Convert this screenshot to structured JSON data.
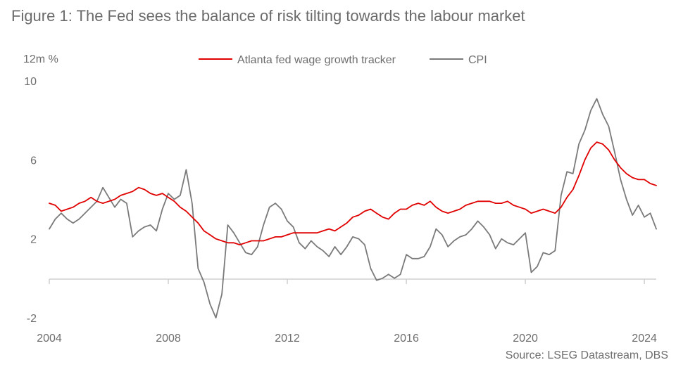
{
  "figure": {
    "title": "Figure 1: The Fed sees the balance of risk tilting towards the labour market",
    "source": "Source: LSEG Datastream, DBS"
  },
  "colors": {
    "wage": "#e00000",
    "cpi": "#7a7a7a",
    "axis": "#cfcfcf"
  },
  "chart_data": {
    "type": "line",
    "title": "Figure 1: The Fed sees the balance of risk tilting towards the labour market",
    "ylabel": "12m %",
    "xlabel": "",
    "ylim": [
      -2,
      10
    ],
    "yticks": [
      -2,
      2,
      6,
      10
    ],
    "xlim": [
      2004,
      2024.4
    ],
    "xticks": [
      2004,
      2008,
      2012,
      2016,
      2020,
      2024
    ],
    "xtick_labels": [
      "2004",
      "2008",
      "2012",
      "2016",
      "2020",
      "2024"
    ],
    "ytick_labels": [
      "-2",
      "2",
      "6",
      "10"
    ],
    "legend_position": "top",
    "series": [
      {
        "name": "Atlanta fed wage growth tracker",
        "key": "wage",
        "points": [
          [
            2004.0,
            3.8
          ],
          [
            2004.2,
            3.7
          ],
          [
            2004.4,
            3.4
          ],
          [
            2004.6,
            3.5
          ],
          [
            2004.8,
            3.6
          ],
          [
            2005.0,
            3.8
          ],
          [
            2005.2,
            3.9
          ],
          [
            2005.4,
            4.1
          ],
          [
            2005.6,
            3.9
          ],
          [
            2005.8,
            3.8
          ],
          [
            2006.0,
            3.9
          ],
          [
            2006.2,
            4.0
          ],
          [
            2006.4,
            4.2
          ],
          [
            2006.6,
            4.3
          ],
          [
            2006.8,
            4.4
          ],
          [
            2007.0,
            4.6
          ],
          [
            2007.2,
            4.5
          ],
          [
            2007.4,
            4.3
          ],
          [
            2007.6,
            4.2
          ],
          [
            2007.8,
            4.3
          ],
          [
            2008.0,
            4.1
          ],
          [
            2008.2,
            3.9
          ],
          [
            2008.4,
            3.6
          ],
          [
            2008.6,
            3.4
          ],
          [
            2008.8,
            3.1
          ],
          [
            2009.0,
            2.8
          ],
          [
            2009.2,
            2.4
          ],
          [
            2009.4,
            2.2
          ],
          [
            2009.6,
            2.0
          ],
          [
            2009.8,
            1.9
          ],
          [
            2010.0,
            1.8
          ],
          [
            2010.2,
            1.8
          ],
          [
            2010.4,
            1.7
          ],
          [
            2010.6,
            1.8
          ],
          [
            2010.8,
            1.9
          ],
          [
            2011.0,
            1.9
          ],
          [
            2011.2,
            1.9
          ],
          [
            2011.4,
            2.0
          ],
          [
            2011.6,
            2.1
          ],
          [
            2011.8,
            2.1
          ],
          [
            2012.0,
            2.2
          ],
          [
            2012.2,
            2.3
          ],
          [
            2012.4,
            2.3
          ],
          [
            2012.6,
            2.3
          ],
          [
            2012.8,
            2.3
          ],
          [
            2013.0,
            2.3
          ],
          [
            2013.2,
            2.4
          ],
          [
            2013.4,
            2.5
          ],
          [
            2013.6,
            2.4
          ],
          [
            2013.8,
            2.6
          ],
          [
            2014.0,
            2.8
          ],
          [
            2014.2,
            3.1
          ],
          [
            2014.4,
            3.2
          ],
          [
            2014.6,
            3.4
          ],
          [
            2014.8,
            3.5
          ],
          [
            2015.0,
            3.3
          ],
          [
            2015.2,
            3.1
          ],
          [
            2015.4,
            3.0
          ],
          [
            2015.6,
            3.3
          ],
          [
            2015.8,
            3.5
          ],
          [
            2016.0,
            3.5
          ],
          [
            2016.2,
            3.7
          ],
          [
            2016.4,
            3.8
          ],
          [
            2016.6,
            3.7
          ],
          [
            2016.8,
            3.9
          ],
          [
            2017.0,
            3.6
          ],
          [
            2017.2,
            3.4
          ],
          [
            2017.4,
            3.3
          ],
          [
            2017.6,
            3.4
          ],
          [
            2017.8,
            3.5
          ],
          [
            2018.0,
            3.7
          ],
          [
            2018.2,
            3.8
          ],
          [
            2018.4,
            3.9
          ],
          [
            2018.6,
            3.9
          ],
          [
            2018.8,
            3.9
          ],
          [
            2019.0,
            3.8
          ],
          [
            2019.2,
            3.8
          ],
          [
            2019.4,
            3.9
          ],
          [
            2019.6,
            3.7
          ],
          [
            2019.8,
            3.6
          ],
          [
            2020.0,
            3.5
          ],
          [
            2020.2,
            3.3
          ],
          [
            2020.4,
            3.4
          ],
          [
            2020.6,
            3.5
          ],
          [
            2020.8,
            3.4
          ],
          [
            2021.0,
            3.3
          ],
          [
            2021.2,
            3.6
          ],
          [
            2021.4,
            4.1
          ],
          [
            2021.6,
            4.5
          ],
          [
            2021.8,
            5.2
          ],
          [
            2022.0,
            6.0
          ],
          [
            2022.2,
            6.6
          ],
          [
            2022.4,
            6.9
          ],
          [
            2022.6,
            6.8
          ],
          [
            2022.8,
            6.5
          ],
          [
            2023.0,
            6.0
          ],
          [
            2023.2,
            5.6
          ],
          [
            2023.4,
            5.3
          ],
          [
            2023.6,
            5.1
          ],
          [
            2023.8,
            5.0
          ],
          [
            2024.0,
            5.0
          ],
          [
            2024.2,
            4.8
          ],
          [
            2024.4,
            4.7
          ]
        ]
      },
      {
        "name": "CPI",
        "key": "cpi",
        "points": [
          [
            2004.0,
            2.5
          ],
          [
            2004.2,
            3.0
          ],
          [
            2004.4,
            3.3
          ],
          [
            2004.6,
            3.0
          ],
          [
            2004.8,
            2.8
          ],
          [
            2005.0,
            3.0
          ],
          [
            2005.2,
            3.3
          ],
          [
            2005.4,
            3.6
          ],
          [
            2005.6,
            3.9
          ],
          [
            2005.8,
            4.6
          ],
          [
            2006.0,
            4.1
          ],
          [
            2006.2,
            3.6
          ],
          [
            2006.4,
            4.0
          ],
          [
            2006.6,
            3.8
          ],
          [
            2006.8,
            2.1
          ],
          [
            2007.0,
            2.4
          ],
          [
            2007.2,
            2.6
          ],
          [
            2007.4,
            2.7
          ],
          [
            2007.6,
            2.4
          ],
          [
            2007.8,
            3.5
          ],
          [
            2008.0,
            4.3
          ],
          [
            2008.2,
            4.0
          ],
          [
            2008.4,
            4.2
          ],
          [
            2008.6,
            5.5
          ],
          [
            2008.8,
            3.8
          ],
          [
            2009.0,
            0.5
          ],
          [
            2009.2,
            -0.2
          ],
          [
            2009.4,
            -1.3
          ],
          [
            2009.6,
            -2.0
          ],
          [
            2009.8,
            -0.8
          ],
          [
            2010.0,
            2.7
          ],
          [
            2010.2,
            2.3
          ],
          [
            2010.4,
            1.8
          ],
          [
            2010.6,
            1.3
          ],
          [
            2010.8,
            1.2
          ],
          [
            2011.0,
            1.6
          ],
          [
            2011.2,
            2.7
          ],
          [
            2011.4,
            3.6
          ],
          [
            2011.6,
            3.8
          ],
          [
            2011.8,
            3.5
          ],
          [
            2012.0,
            2.9
          ],
          [
            2012.2,
            2.6
          ],
          [
            2012.4,
            1.8
          ],
          [
            2012.6,
            1.5
          ],
          [
            2012.8,
            1.9
          ],
          [
            2013.0,
            1.6
          ],
          [
            2013.2,
            1.4
          ],
          [
            2013.4,
            1.1
          ],
          [
            2013.6,
            1.6
          ],
          [
            2013.8,
            1.2
          ],
          [
            2014.0,
            1.6
          ],
          [
            2014.2,
            2.1
          ],
          [
            2014.4,
            2.0
          ],
          [
            2014.6,
            1.7
          ],
          [
            2014.8,
            0.5
          ],
          [
            2015.0,
            -0.1
          ],
          [
            2015.2,
            0.0
          ],
          [
            2015.4,
            0.2
          ],
          [
            2015.6,
            0.0
          ],
          [
            2015.8,
            0.2
          ],
          [
            2016.0,
            1.2
          ],
          [
            2016.2,
            1.0
          ],
          [
            2016.4,
            1.0
          ],
          [
            2016.6,
            1.1
          ],
          [
            2016.8,
            1.6
          ],
          [
            2017.0,
            2.5
          ],
          [
            2017.2,
            2.2
          ],
          [
            2017.4,
            1.6
          ],
          [
            2017.6,
            1.9
          ],
          [
            2017.8,
            2.1
          ],
          [
            2018.0,
            2.2
          ],
          [
            2018.2,
            2.5
          ],
          [
            2018.4,
            2.9
          ],
          [
            2018.6,
            2.6
          ],
          [
            2018.8,
            2.2
          ],
          [
            2019.0,
            1.5
          ],
          [
            2019.2,
            2.0
          ],
          [
            2019.4,
            1.8
          ],
          [
            2019.6,
            1.7
          ],
          [
            2019.8,
            2.0
          ],
          [
            2020.0,
            2.3
          ],
          [
            2020.2,
            0.3
          ],
          [
            2020.4,
            0.6
          ],
          [
            2020.6,
            1.3
          ],
          [
            2020.8,
            1.2
          ],
          [
            2021.0,
            1.4
          ],
          [
            2021.2,
            4.2
          ],
          [
            2021.4,
            5.4
          ],
          [
            2021.6,
            5.3
          ],
          [
            2021.8,
            6.8
          ],
          [
            2022.0,
            7.5
          ],
          [
            2022.2,
            8.5
          ],
          [
            2022.4,
            9.1
          ],
          [
            2022.6,
            8.3
          ],
          [
            2022.8,
            7.7
          ],
          [
            2023.0,
            6.4
          ],
          [
            2023.2,
            5.0
          ],
          [
            2023.4,
            4.0
          ],
          [
            2023.6,
            3.2
          ],
          [
            2023.8,
            3.7
          ],
          [
            2024.0,
            3.1
          ],
          [
            2024.2,
            3.3
          ],
          [
            2024.4,
            2.5
          ]
        ]
      }
    ]
  }
}
